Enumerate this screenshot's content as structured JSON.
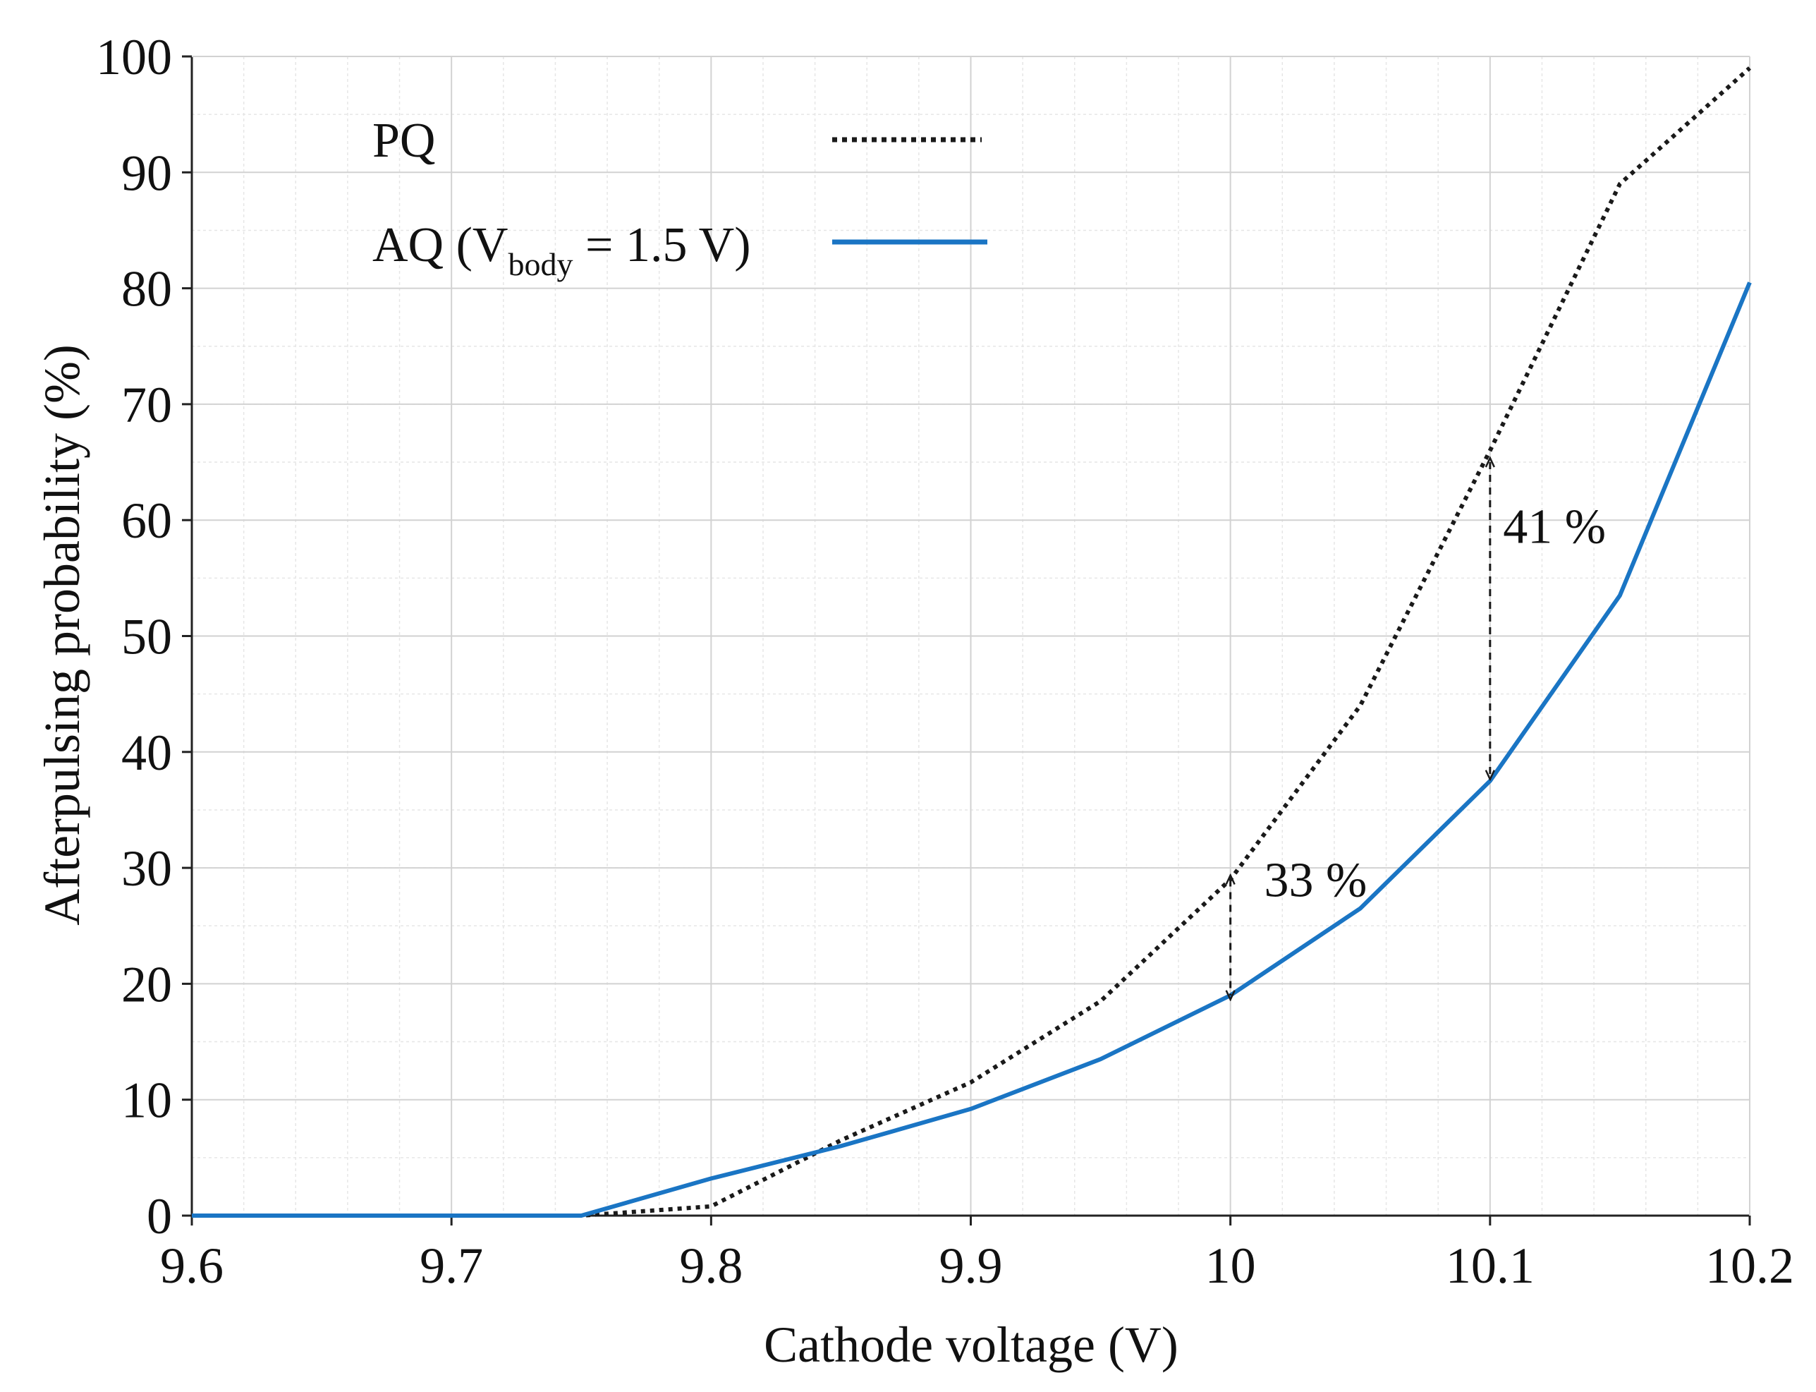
{
  "chart_data": {
    "type": "line",
    "title": "",
    "xlabel": "Cathode voltage (V)",
    "ylabel": "Afterpulsing probability (%)",
    "xlim": [
      9.6,
      10.2
    ],
    "ylim": [
      0,
      100
    ],
    "x_ticks": [
      9.6,
      9.7,
      9.8,
      9.9,
      10,
      10.1,
      10.2
    ],
    "x_tick_labels": [
      "9.6",
      "9.7",
      "9.8",
      "9.9",
      "10",
      "10.1",
      "10.2"
    ],
    "y_ticks": [
      0,
      10,
      20,
      30,
      40,
      50,
      60,
      70,
      80,
      90,
      100
    ],
    "y_tick_labels": [
      "0",
      "10",
      "20",
      "30",
      "40",
      "50",
      "60",
      "70",
      "80",
      "90",
      "100"
    ],
    "grid": true,
    "legend_position": "top-left",
    "series": [
      {
        "name": "PQ",
        "style": "dotted",
        "color": "#1a1a1a",
        "x": [
          9.6,
          9.75,
          9.8,
          9.85,
          9.9,
          9.95,
          10.0,
          10.05,
          10.1,
          10.15,
          10.2
        ],
        "y": [
          0,
          0,
          0.8,
          6.5,
          11.5,
          18.5,
          29,
          44,
          66,
          89,
          99
        ]
      },
      {
        "name": "AQ (V",
        "name_sub": "body",
        "name_suffix": " = 1.5 V)",
        "style": "solid",
        "color": "#1a75c4",
        "x": [
          9.6,
          9.75,
          9.8,
          9.85,
          9.9,
          9.95,
          10.0,
          10.05,
          10.1,
          10.15,
          10.2
        ],
        "y": [
          0,
          0,
          3.2,
          6.0,
          9.2,
          13.5,
          19,
          26.5,
          37.5,
          53.5,
          80.5
        ]
      }
    ],
    "annotations": [
      {
        "text": "33 %",
        "x": 10.0,
        "y_top": 29,
        "y_bottom": 19,
        "label_x": 10.013,
        "label_y": 29
      },
      {
        "text": "41 %",
        "x": 10.1,
        "y_top": 65,
        "y_bottom": 38,
        "label_x": 10.105,
        "label_y": 59.5
      }
    ]
  }
}
